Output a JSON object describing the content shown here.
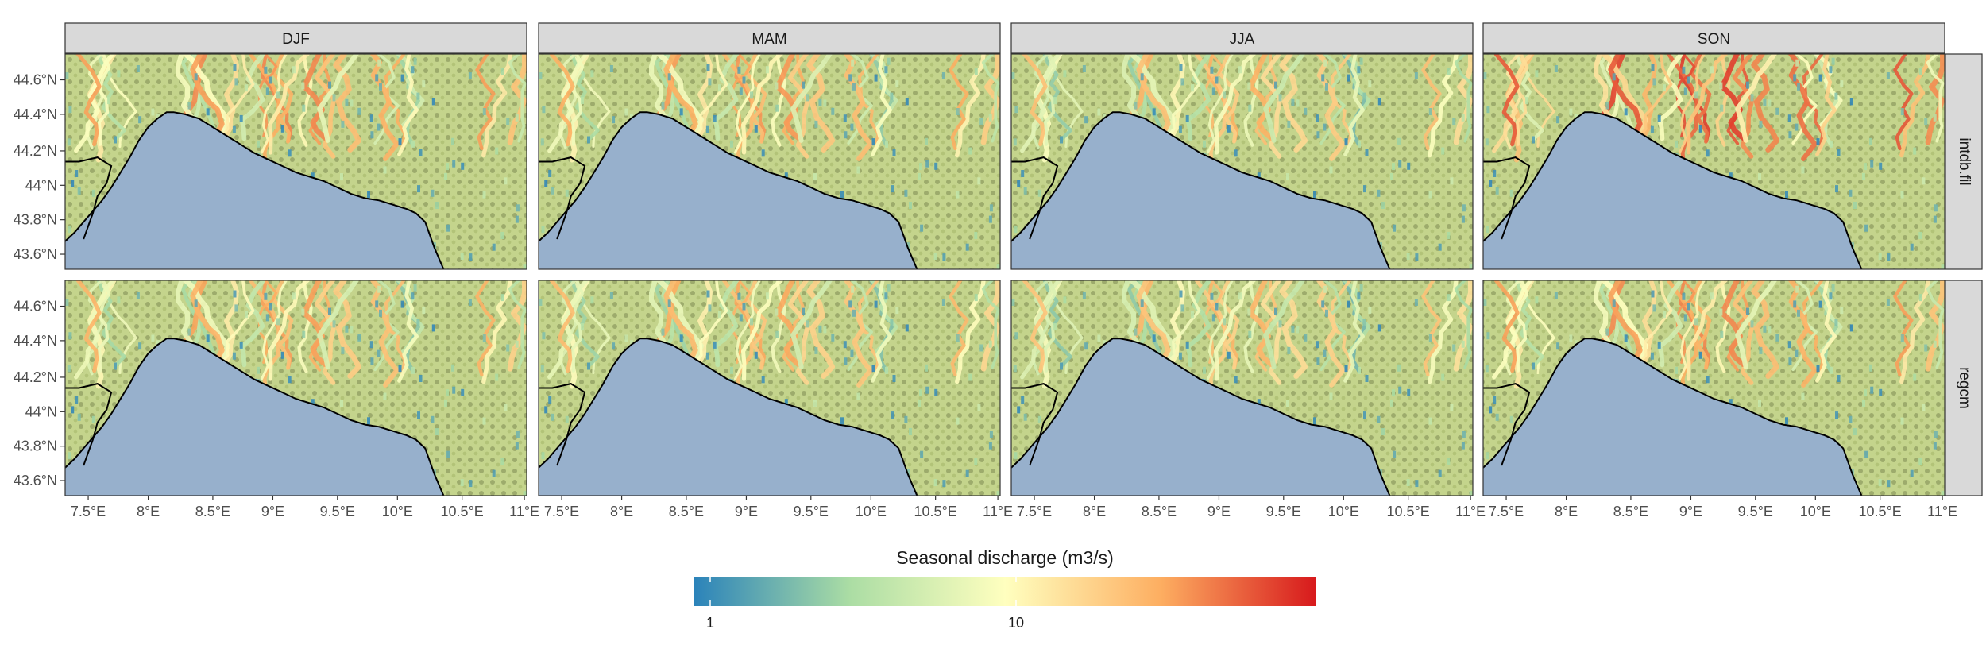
{
  "columns": [
    "DJF",
    "MAM",
    "JJA",
    "SON"
  ],
  "rows": [
    "intdb.fil",
    "regcm"
  ],
  "x_ticks": [
    "7.5°E",
    "8°E",
    "8.5°E",
    "9°E",
    "9.5°E",
    "10°E",
    "10.5°E",
    "11°E"
  ],
  "y_ticks": [
    "44.6°N",
    "44.4°N",
    "44.2°N",
    "44°N",
    "43.8°N",
    "43.6°N"
  ],
  "legend": {
    "title": "Seasonal discharge (m3/s)",
    "labels": [
      "1",
      "10"
    ],
    "scale": "log",
    "colors": [
      "#2b83ba",
      "#abdda4",
      "#ffffbf",
      "#fdae61",
      "#d7191c"
    ]
  },
  "colors": {
    "sea": "#97b0cc",
    "land_light": "#c4d48c",
    "land_dark": "#6d7a45",
    "coastline": "#000000",
    "strip": "#d9d9d9"
  }
}
